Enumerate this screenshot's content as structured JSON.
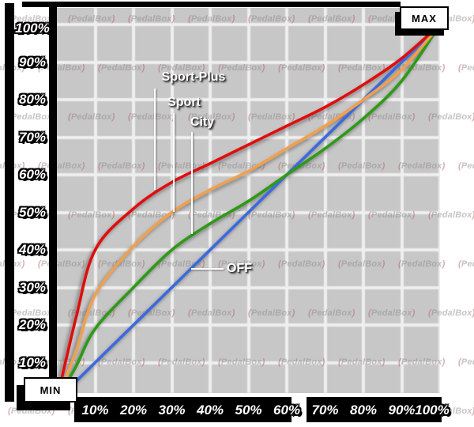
{
  "watermark": "PedalBox",
  "boxes": {
    "max_label": "MAX",
    "min_label": "MIN"
  },
  "chart_data": {
    "type": "line",
    "title": "",
    "x_ticks": [
      "10%",
      "20%",
      "30%",
      "40%",
      "50%",
      "60%",
      "70%",
      "80%",
      "90%",
      "100%"
    ],
    "y_ticks": [
      "100%",
      "90%",
      "80%",
      "70%",
      "60%",
      "50%",
      "40%",
      "30%",
      "20%",
      "10%"
    ],
    "xlim": [
      0,
      100
    ],
    "ylim": [
      0,
      100
    ],
    "grid": true,
    "annotations": [
      "MAX",
      "MIN"
    ],
    "series": [
      {
        "name": "Sport-Plus",
        "color": "#e01010",
        "x": [
          0,
          5,
          10,
          20,
          30,
          40,
          50,
          60,
          70,
          80,
          90,
          100
        ],
        "y": [
          0,
          22,
          40,
          51,
          58,
          63,
          68,
          73,
          78,
          84,
          91,
          100
        ]
      },
      {
        "name": "Sport",
        "color": "#f0a050",
        "x": [
          0,
          5,
          10,
          20,
          30,
          40,
          50,
          60,
          70,
          80,
          90,
          100
        ],
        "y": [
          0,
          13,
          28,
          41,
          50,
          56,
          61,
          67,
          73,
          80,
          88,
          100
        ]
      },
      {
        "name": "City",
        "color": "#2e9a12",
        "x": [
          0,
          5,
          10,
          20,
          30,
          40,
          50,
          60,
          70,
          80,
          90,
          100
        ],
        "y": [
          0,
          9,
          19,
          30,
          40,
          47,
          53,
          60,
          67,
          75,
          85,
          100
        ]
      },
      {
        "name": "OFF",
        "color": "#3a6add",
        "x": [
          0,
          25,
          50,
          75,
          100
        ],
        "y": [
          0,
          25,
          50,
          75,
          100
        ]
      }
    ]
  }
}
